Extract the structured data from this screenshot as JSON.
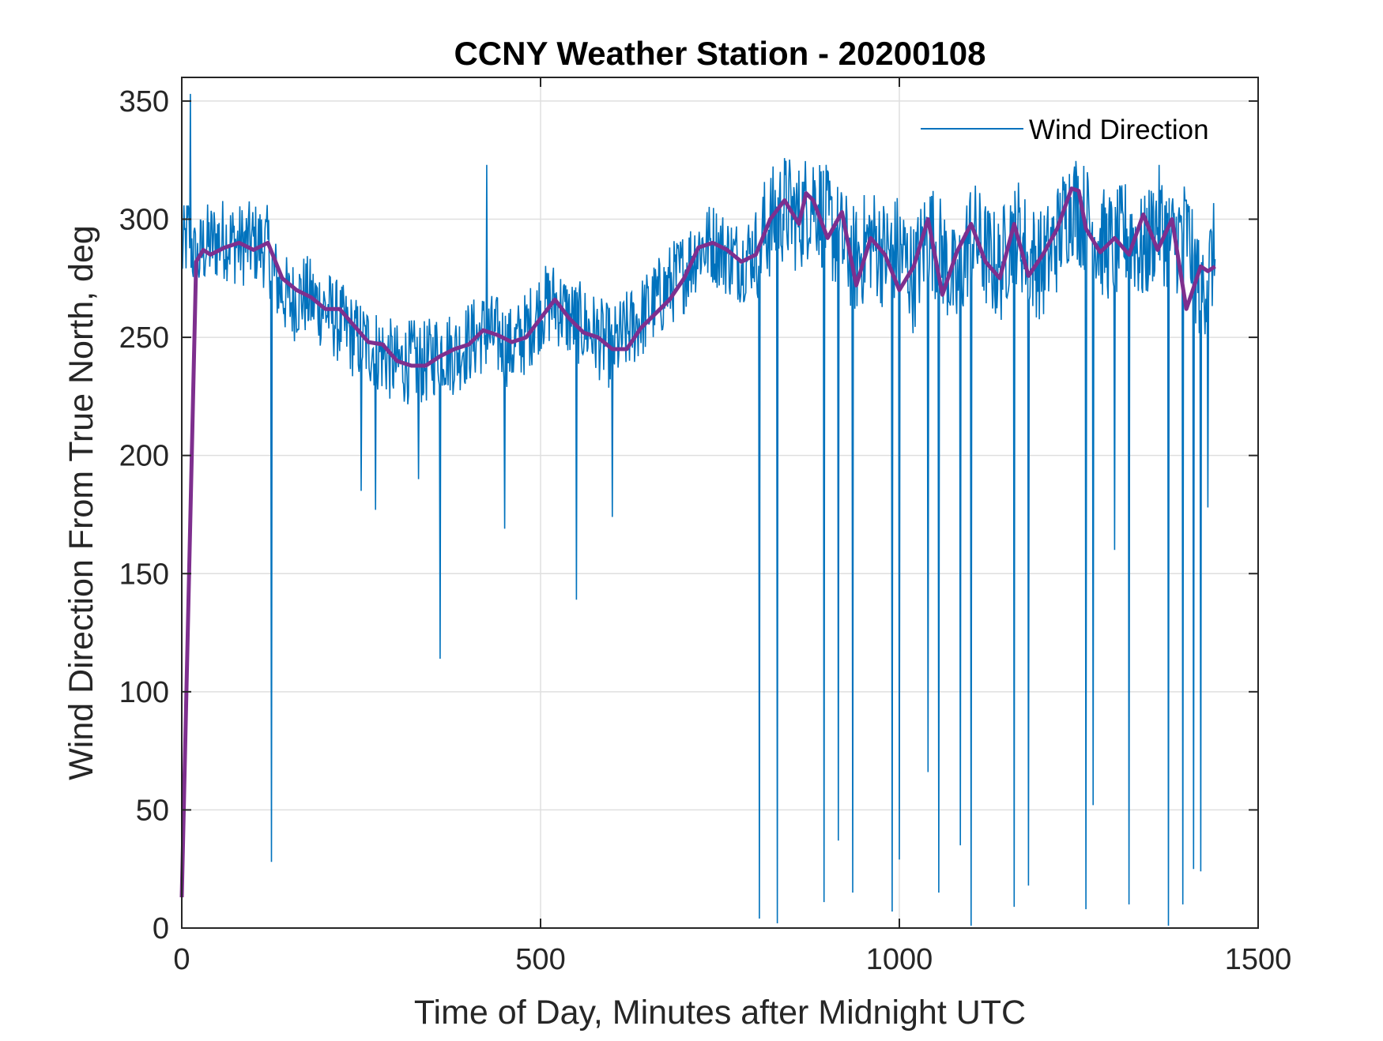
{
  "chart_data": {
    "type": "line",
    "title": "CCNY Weather Station - 20200108",
    "xlabel": "Time of Day, Minutes after Midnight UTC",
    "ylabel": "Wind Direction From True North, deg",
    "xlim": [
      0,
      1500
    ],
    "ylim": [
      0,
      360
    ],
    "xticks": [
      "0",
      "500",
      "1000",
      "1500"
    ],
    "yticks": [
      "0",
      "50",
      "100",
      "150",
      "200",
      "250",
      "300",
      "350"
    ],
    "grid": true,
    "legend": {
      "placement": "top-right",
      "entries": [
        "Wind Direction"
      ]
    },
    "series": [
      {
        "name": "Wind Direction",
        "color": "#0072bd",
        "x": [
          0,
          10,
          20,
          30,
          40,
          60,
          80,
          100,
          120,
          130,
          150,
          170,
          200,
          220,
          240,
          260,
          280,
          300,
          320,
          340,
          360,
          380,
          400,
          420,
          440,
          460,
          480,
          500,
          520,
          540,
          560,
          580,
          600,
          620,
          640,
          660,
          680,
          700,
          720,
          740,
          760,
          780,
          800,
          820,
          840,
          860,
          880,
          900,
          920,
          940,
          960,
          980,
          1000,
          1020,
          1040,
          1060,
          1080,
          1100,
          1120,
          1140,
          1160,
          1180,
          1200,
          1220,
          1240,
          1260,
          1280,
          1300,
          1320,
          1340,
          1360,
          1380,
          1400,
          1420,
          1440
        ],
        "y": [
          285,
          295,
          280,
          288,
          290,
          292,
          289,
          290,
          288,
          275,
          265,
          268,
          262,
          256,
          250,
          247,
          243,
          238,
          240,
          239,
          245,
          243,
          248,
          252,
          250,
          245,
          252,
          262,
          265,
          258,
          255,
          250,
          245,
          252,
          258,
          265,
          272,
          278,
          288,
          290,
          285,
          282,
          288,
          298,
          305,
          300,
          310,
          298,
          290,
          282,
          292,
          285,
          288,
          275,
          295,
          285,
          270,
          295,
          285,
          278,
          298,
          285,
          280,
          292,
          308,
          300,
          290,
          288,
          295,
          285,
          300,
          290,
          295,
          270,
          285
        ]
      },
      {
        "name": "",
        "color": "#7e2f8e",
        "x": [
          0,
          20,
          30,
          40,
          60,
          80,
          100,
          120,
          140,
          160,
          180,
          200,
          220,
          240,
          260,
          280,
          300,
          320,
          340,
          360,
          380,
          400,
          420,
          440,
          460,
          480,
          500,
          520,
          540,
          560,
          580,
          600,
          620,
          640,
          660,
          680,
          700,
          720,
          740,
          760,
          780,
          800,
          820,
          840,
          860,
          870,
          880,
          900,
          920,
          940,
          960,
          980,
          1000,
          1020,
          1040,
          1060,
          1080,
          1100,
          1120,
          1140,
          1160,
          1180,
          1200,
          1220,
          1240,
          1250,
          1260,
          1280,
          1300,
          1320,
          1340,
          1360,
          1380,
          1400,
          1420,
          1430,
          1440
        ],
        "y": [
          13,
          282,
          287,
          285,
          288,
          290,
          287,
          290,
          275,
          270,
          267,
          262,
          262,
          255,
          248,
          247,
          240,
          238,
          238,
          242,
          245,
          247,
          253,
          251,
          248,
          250,
          258,
          266,
          258,
          252,
          250,
          245,
          245,
          254,
          260,
          266,
          275,
          288,
          290,
          287,
          282,
          285,
          300,
          308,
          298,
          311,
          308,
          292,
          303,
          272,
          292,
          285,
          270,
          280,
          300,
          268,
          286,
          298,
          282,
          275,
          298,
          276,
          285,
          296,
          313,
          312,
          296,
          286,
          292,
          285,
          302,
          287,
          300,
          262,
          280,
          278,
          280
        ]
      }
    ],
    "spikes": {
      "x": [
        12,
        125,
        250,
        270,
        330,
        360,
        425,
        450,
        550,
        600,
        805,
        830,
        895,
        915,
        935,
        990,
        1000,
        1040,
        1055,
        1085,
        1100,
        1160,
        1180,
        1260,
        1270,
        1300,
        1320,
        1375,
        1395,
        1410,
        1420,
        1430
      ],
      "y": [
        353,
        28,
        185,
        177,
        190,
        114,
        323,
        169,
        139,
        174,
        4,
        2,
        11,
        37,
        15,
        7,
        29,
        66,
        15,
        35,
        1,
        9,
        18,
        8,
        52,
        160,
        10,
        1,
        10,
        25,
        24,
        178
      ]
    }
  }
}
